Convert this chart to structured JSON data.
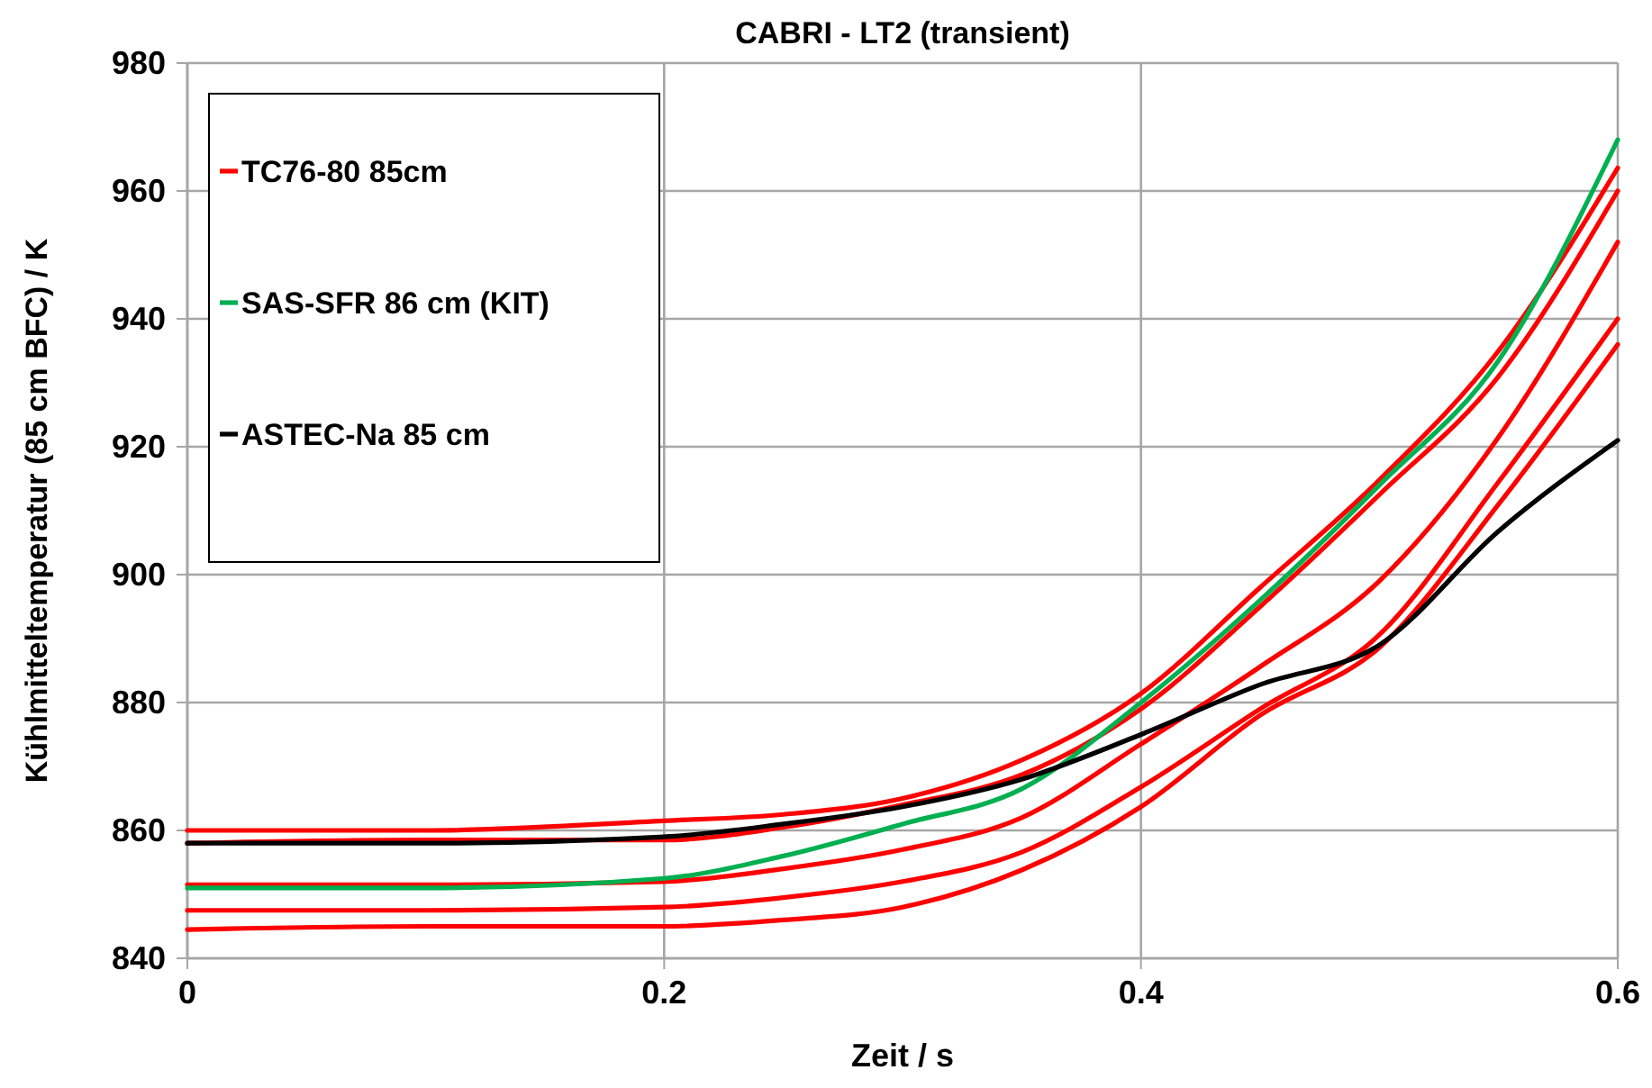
{
  "chart_data": {
    "type": "line",
    "title": "CABRI - LT2 (transient)",
    "xlabel": "Zeit / s",
    "ylabel": "Kühlmitteltemperatur (85 cm BFC) / K",
    "x": [
      0,
      0.1,
      0.2,
      0.25,
      0.3,
      0.35,
      0.4,
      0.45,
      0.5,
      0.55,
      0.6
    ],
    "xlim": [
      0,
      0.6
    ],
    "xticks": [
      0,
      0.2,
      0.4,
      0.6
    ],
    "ylim": [
      840,
      980
    ],
    "yticks": [
      840,
      860,
      880,
      900,
      920,
      940,
      960,
      980
    ],
    "grid": true,
    "legend": "top left",
    "line_style": "solid",
    "marker": "none",
    "series": [
      {
        "name": "TC76-80 85cm",
        "color": "#ff0000",
        "values": [
          860,
          860,
          861.5,
          862.5,
          865,
          871,
          881.4,
          898,
          914.8,
          935,
          963.6
        ]
      },
      {
        "color": "#ff0000",
        "values": [
          858,
          858.5,
          858.5,
          860.5,
          864,
          868.7,
          879,
          895,
          912.5,
          931,
          960
        ]
      },
      {
        "color": "#ff0000",
        "values": [
          851.5,
          851.5,
          852,
          854,
          857,
          862,
          873.5,
          885.6,
          899,
          921.5,
          952
        ]
      },
      {
        "color": "#ff0000",
        "values": [
          847.5,
          847.5,
          848,
          849.5,
          852,
          856.6,
          866.8,
          879,
          890.6,
          914.5,
          940
        ]
      },
      {
        "color": "#ff0000",
        "values": [
          844.5,
          845,
          845,
          846,
          848,
          853.8,
          863.7,
          878,
          888.6,
          911,
          936
        ]
      },
      {
        "name": "SAS-SFR 86 cm (KIT)",
        "color": "#00b050",
        "values": [
          851,
          851,
          852.5,
          856,
          861,
          866.5,
          880,
          896,
          914,
          933.5,
          968
        ]
      },
      {
        "name": "ASTEC-Na 85 cm",
        "color": "#000000",
        "values": [
          858,
          858,
          859,
          861,
          863.7,
          868,
          875,
          882.8,
          889,
          906.8,
          921
        ]
      }
    ]
  }
}
